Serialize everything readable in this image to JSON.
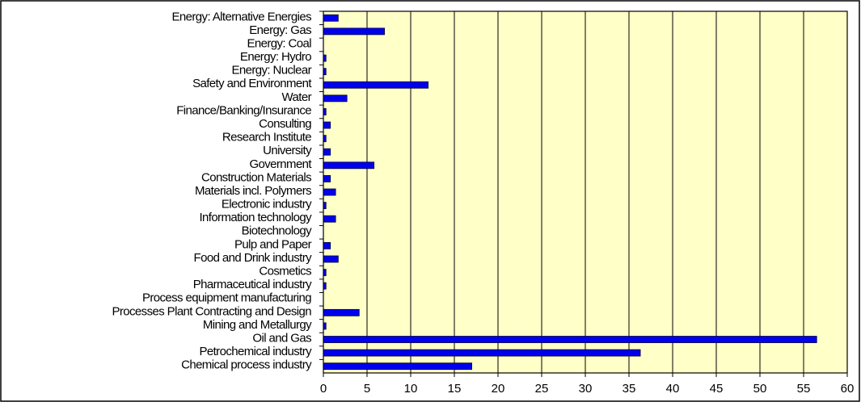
{
  "chart_data": {
    "type": "barh",
    "categories": [
      "Energy: Alternative Energies",
      "Energy: Gas",
      "Energy: Coal",
      "Energy: Hydro",
      "Energy: Nuclear",
      "Safety and Environment",
      "Water",
      "Finance/Banking/Insurance",
      "Consulting",
      "Research Institute",
      "University",
      "Government",
      "Construction Materials",
      "Materials incl. Polymers",
      "Electronic industry",
      "Information technology",
      "Biotechnology",
      "Pulp and Paper",
      "Food and Drink industry",
      "Cosmetics",
      "Pharmaceutical industry",
      "Process equipment manufacturing",
      "Processes Plant Contracting and Design",
      "Mining and Metallurgy",
      "Oil and Gas",
      "Petrochemical industry",
      "Chemical process industry"
    ],
    "values": [
      1.7,
      7,
      0,
      0.3,
      0.3,
      12,
      2.7,
      0.3,
      0.8,
      0.3,
      0.8,
      5.8,
      0.8,
      1.4,
      0.3,
      1.4,
      0,
      0.8,
      1.7,
      0.3,
      0.3,
      0,
      4.1,
      0.3,
      56.5,
      36.3,
      17
    ],
    "color": "#0000ee",
    "xlim": [
      0,
      60
    ],
    "xticks": [
      0,
      5,
      10,
      15,
      20,
      25,
      30,
      35,
      40,
      45,
      50,
      55,
      60
    ],
    "grid": true
  }
}
